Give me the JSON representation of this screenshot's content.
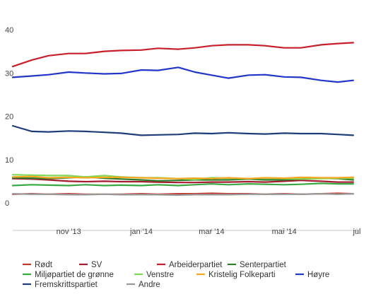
{
  "chart_data": {
    "type": "line",
    "title": "",
    "xlabel": "",
    "ylabel": "",
    "ylim": [
      0,
      40
    ],
    "xlim": [
      "2013-09-15",
      "2014-07-01"
    ],
    "y_ticks": [
      0,
      10,
      20,
      30,
      40
    ],
    "x_ticks": [
      {
        "date": "2013-11-01",
        "label": "nov '13"
      },
      {
        "date": "2014-01-01",
        "label": "jan '14"
      },
      {
        "date": "2014-03-01",
        "label": "mar '14"
      },
      {
        "date": "2014-05-01",
        "label": "mai '14"
      },
      {
        "date": "2014-07-01",
        "label": "jul"
      }
    ],
    "grid": false,
    "legend_position": "bottom",
    "x": [
      "2013-09-15",
      "2013-10-01",
      "2013-10-15",
      "2013-11-01",
      "2013-11-15",
      "2013-12-01",
      "2013-12-15",
      "2014-01-01",
      "2014-01-15",
      "2014-02-01",
      "2014-02-15",
      "2014-03-01",
      "2014-03-15",
      "2014-04-01",
      "2014-04-15",
      "2014-05-01",
      "2014-05-15",
      "2014-06-01",
      "2014-06-15",
      "2014-06-28"
    ],
    "series": [
      {
        "name": "Rødt",
        "color": "#c0392b",
        "values": [
          2.0,
          2.1,
          2.0,
          2.1,
          2.0,
          2.0,
          2.0,
          2.1,
          2.0,
          2.1,
          2.1,
          2.2,
          2.1,
          2.1,
          2.0,
          2.1,
          2.0,
          2.1,
          2.2,
          2.1
        ]
      },
      {
        "name": "SV",
        "color": "#a51c30",
        "values": [
          5.6,
          5.5,
          5.3,
          5.0,
          4.9,
          5.0,
          4.9,
          4.9,
          4.8,
          4.7,
          4.7,
          4.8,
          4.8,
          4.9,
          4.8,
          5.0,
          5.2,
          5.0,
          4.8,
          4.8
        ]
      },
      {
        "name": "Arbeiderpartiet",
        "color": "#c8202a",
        "values": [
          31.5,
          33.0,
          34.0,
          34.5,
          34.5,
          35.0,
          35.2,
          35.3,
          35.7,
          35.5,
          35.8,
          36.3,
          36.5,
          36.5,
          36.3,
          35.8,
          35.8,
          36.5,
          36.8,
          37.0
        ]
      },
      {
        "name": "Senterpartiet",
        "color": "#2d7d2a",
        "values": [
          5.8,
          5.7,
          5.6,
          5.8,
          6.0,
          5.7,
          5.5,
          5.3,
          5.1,
          5.2,
          5.3,
          5.3,
          5.3,
          5.5,
          5.3,
          5.3,
          5.5,
          5.7,
          5.6,
          5.3
        ]
      },
      {
        "name": "Miljøpartiet de grønne",
        "color": "#3aa845",
        "values": [
          4.0,
          4.2,
          4.1,
          4.0,
          4.2,
          4.0,
          4.1,
          4.0,
          4.2,
          4.0,
          4.2,
          4.4,
          4.2,
          4.4,
          4.3,
          4.2,
          4.3,
          4.5,
          4.4,
          4.4
        ]
      },
      {
        "name": "Venstre",
        "color": "#7ed957",
        "values": [
          6.5,
          6.4,
          6.3,
          6.3,
          6.0,
          6.3,
          6.0,
          5.8,
          5.8,
          5.6,
          5.4,
          5.8,
          5.7,
          5.6,
          5.7,
          5.6,
          5.5,
          5.6,
          5.7,
          5.7
        ]
      },
      {
        "name": "Kristelig Folkeparti",
        "color": "#f5a623",
        "values": [
          6.0,
          6.1,
          5.8,
          5.9,
          5.8,
          5.9,
          5.9,
          5.8,
          5.7,
          5.6,
          5.7,
          5.6,
          5.8,
          5.6,
          5.8,
          5.7,
          5.9,
          5.8,
          5.8,
          5.9
        ]
      },
      {
        "name": "Høyre",
        "color": "#2236c8",
        "values": [
          29.0,
          29.3,
          29.6,
          30.2,
          30.0,
          29.8,
          29.9,
          30.7,
          30.6,
          31.3,
          30.2,
          29.5,
          28.8,
          29.5,
          29.6,
          29.1,
          29.0,
          28.3,
          27.9,
          28.3
        ]
      },
      {
        "name": "Fremskrittspartiet",
        "color": "#1f3d7a",
        "values": [
          17.8,
          16.5,
          16.4,
          16.6,
          16.5,
          16.3,
          16.1,
          15.6,
          15.7,
          15.8,
          16.1,
          16.0,
          16.2,
          16.0,
          15.9,
          16.1,
          16.0,
          16.0,
          15.8,
          15.6
        ]
      },
      {
        "name": "Andre",
        "color": "#999999",
        "values": [
          2.1,
          2.0,
          2.0,
          1.9,
          1.9,
          2.0,
          1.9,
          1.9,
          1.9,
          1.8,
          1.9,
          1.9,
          1.9,
          2.0,
          2.0,
          2.0,
          2.0,
          2.1,
          2.0,
          2.1
        ]
      }
    ],
    "legend_rows": [
      [
        "Rødt",
        "SV",
        "Arbeiderpartiet",
        "Senterpartiet"
      ],
      [
        "Miljøpartiet de grønne",
        "Venstre",
        "Kristelig Folkeparti",
        "Høyre"
      ],
      [
        "Fremskrittspartiet",
        "Andre"
      ]
    ]
  }
}
